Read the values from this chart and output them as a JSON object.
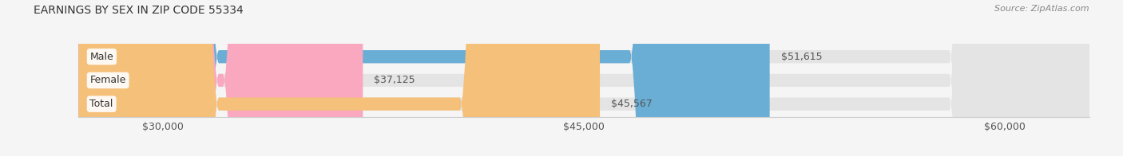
{
  "title": "EARNINGS BY SEX IN ZIP CODE 55334",
  "source": "Source: ZipAtlas.com",
  "categories": [
    "Male",
    "Female",
    "Total"
  ],
  "values": [
    51615,
    37125,
    45567
  ],
  "bar_colors": [
    "#6aaed6",
    "#f9a8c0",
    "#f5c07a"
  ],
  "value_labels": [
    "$51,615",
    "$37,125",
    "$45,567"
  ],
  "xmin": 27000,
  "xmax": 63000,
  "xticks": [
    30000,
    45000,
    60000
  ],
  "xtick_labels": [
    "$30,000",
    "$45,000",
    "$60,000"
  ],
  "background_color": "#f5f5f5",
  "bar_bg_color": "#e4e4e4",
  "title_fontsize": 10,
  "tick_fontsize": 9,
  "source_fontsize": 8
}
